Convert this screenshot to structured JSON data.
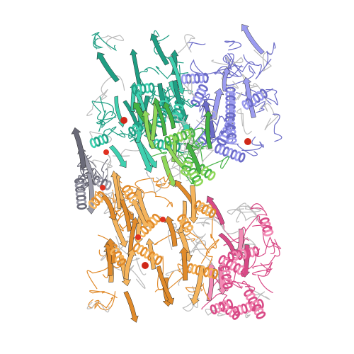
{
  "scene": {
    "subject": "protein-structure-cartoon",
    "background": "#ffffff",
    "chains": [
      {
        "id": "chain-teal",
        "color": "#1f9e83",
        "highlight": "#3fd1b0"
      },
      {
        "id": "chain-green",
        "color": "#43b243",
        "highlight": "#8fd85a"
      },
      {
        "id": "chain-blue",
        "color": "#6b6bc7",
        "highlight": "#9c9cf0"
      },
      {
        "id": "chain-orange",
        "color": "#e08a2a",
        "highlight": "#f5b45c"
      },
      {
        "id": "chain-pink",
        "color": "#d84a86",
        "highlight": "#f28ab4"
      },
      {
        "id": "chain-gray",
        "color": "#6a6a78",
        "highlight": "#9a9aa8"
      }
    ],
    "ligand_colors": [
      "#e03020",
      "#d02818"
    ]
  }
}
